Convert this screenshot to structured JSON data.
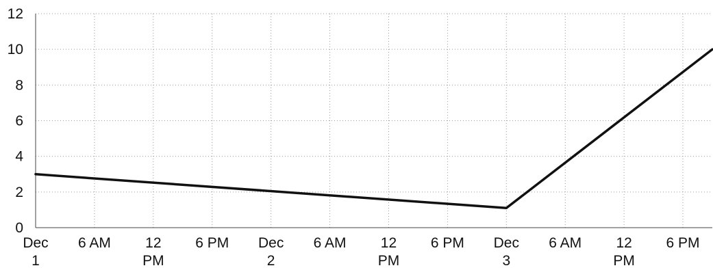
{
  "chart_data": {
    "type": "line",
    "title": "",
    "xlabel": "",
    "ylabel": "",
    "x_ticks": [
      "Dec 1",
      "6 AM",
      "12 PM",
      "6 PM",
      "Dec 2",
      "6 AM",
      "12 PM",
      "6 PM",
      "Dec 3",
      "6 AM",
      "12 PM",
      "6 PM"
    ],
    "y_ticks": [
      "0",
      "2",
      "4",
      "6",
      "8",
      "10",
      "12"
    ],
    "ylim": [
      0,
      12
    ],
    "xlim": [
      "Dec 1 00:00",
      "Dec 3 21:00"
    ],
    "grid": true,
    "series": [
      {
        "color": "#111111",
        "points": [
          {
            "x": "Dec 1 00:00",
            "y": 3
          },
          {
            "x": "Dec 3 00:00",
            "y": 1.1
          },
          {
            "x": "Dec 3 21:00",
            "y": 10
          }
        ]
      }
    ]
  }
}
